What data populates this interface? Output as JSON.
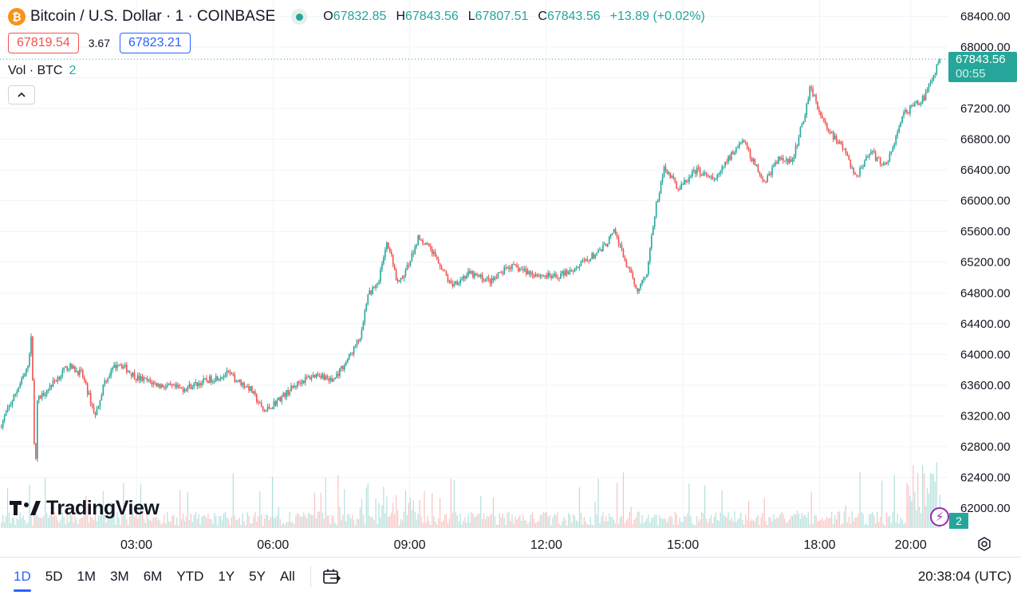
{
  "header": {
    "symbol_title": "Bitcoin / U.S. Dollar · 1 · COINBASE",
    "coin_glyph": "₿",
    "ohlc": {
      "o_label": "O",
      "o_value": "67832.85",
      "h_label": "H",
      "h_value": "67843.56",
      "l_label": "L",
      "l_value": "67807.51",
      "c_label": "C",
      "c_value": "67843.56",
      "change": "+13.89 (+0.02%)"
    },
    "bid": "67819.54",
    "spread": "3.67",
    "ask": "67823.21",
    "volume_label": "Vol · BTC",
    "volume_value": "2"
  },
  "last_price": {
    "value": "67843.56",
    "countdown": "00:55"
  },
  "brand": "TradingView",
  "volume_badge": "2",
  "colors": {
    "up": "#26a69a",
    "down": "#ef5350",
    "grid": "#f0f3fa",
    "axis_text": "#131722",
    "accent": "#2962ff"
  },
  "icons": {
    "collapse": "chevron-up-icon",
    "bolt": "lightning-icon",
    "settings": "gear-icon",
    "goto_date": "calendar-arrow-icon"
  },
  "bottom_bar": {
    "ranges": [
      "1D",
      "5D",
      "1M",
      "3M",
      "6M",
      "YTD",
      "1Y",
      "5Y",
      "All"
    ],
    "active_range": "1D",
    "clock": "20:38:04 (UTC)"
  },
  "chart_data": {
    "type": "candlestick",
    "title": "Bitcoin / U.S. Dollar · 1 · COINBASE",
    "interval": "1 minute",
    "xlabel": "",
    "ylabel": "",
    "x_ticks": [
      "03:00",
      "06:00",
      "09:00",
      "12:00",
      "15:00",
      "18:00",
      "20:00"
    ],
    "x_tick_hours": [
      3,
      6,
      9,
      12,
      15,
      18,
      20
    ],
    "x_range_hours": [
      0,
      20.64
    ],
    "y_ticks": [
      62000,
      62400,
      62800,
      63200,
      63600,
      64000,
      64400,
      64800,
      65200,
      65600,
      66000,
      66400,
      66800,
      67200,
      67600,
      68000,
      68400
    ],
    "ylim": [
      61800,
      68550
    ],
    "grid": true,
    "last_close": 67843.56,
    "price_path": [
      [
        0.0,
        63050
      ],
      [
        0.35,
        63500
      ],
      [
        0.6,
        63800
      ],
      [
        0.7,
        64250
      ],
      [
        0.78,
        62300
      ],
      [
        0.82,
        63400
      ],
      [
        1.2,
        63650
      ],
      [
        1.5,
        63850
      ],
      [
        1.8,
        63750
      ],
      [
        2.1,
        63200
      ],
      [
        2.3,
        63650
      ],
      [
        2.6,
        63900
      ],
      [
        3.0,
        63700
      ],
      [
        3.5,
        63600
      ],
      [
        4.0,
        63550
      ],
      [
        4.5,
        63650
      ],
      [
        5.0,
        63750
      ],
      [
        5.5,
        63550
      ],
      [
        5.8,
        63250
      ],
      [
        6.2,
        63450
      ],
      [
        6.6,
        63650
      ],
      [
        7.0,
        63750
      ],
      [
        7.3,
        63650
      ],
      [
        7.6,
        63900
      ],
      [
        7.9,
        64200
      ],
      [
        8.1,
        64800
      ],
      [
        8.3,
        64900
      ],
      [
        8.5,
        65500
      ],
      [
        8.75,
        64900
      ],
      [
        9.0,
        65200
      ],
      [
        9.2,
        65550
      ],
      [
        9.6,
        65250
      ],
      [
        9.9,
        64900
      ],
      [
        10.3,
        65050
      ],
      [
        10.8,
        64950
      ],
      [
        11.2,
        65150
      ],
      [
        11.7,
        65050
      ],
      [
        12.2,
        65000
      ],
      [
        12.7,
        65150
      ],
      [
        13.2,
        65350
      ],
      [
        13.5,
        65600
      ],
      [
        13.8,
        65100
      ],
      [
        14.0,
        64850
      ],
      [
        14.2,
        65050
      ],
      [
        14.4,
        65900
      ],
      [
        14.6,
        66450
      ],
      [
        14.9,
        66150
      ],
      [
        15.3,
        66400
      ],
      [
        15.7,
        66250
      ],
      [
        16.0,
        66550
      ],
      [
        16.3,
        66800
      ],
      [
        16.6,
        66450
      ],
      [
        16.8,
        66250
      ],
      [
        17.1,
        66550
      ],
      [
        17.4,
        66500
      ],
      [
        17.7,
        67200
      ],
      [
        17.8,
        67500
      ],
      [
        18.0,
        67150
      ],
      [
        18.2,
        66900
      ],
      [
        18.5,
        66700
      ],
      [
        18.8,
        66300
      ],
      [
        19.1,
        66650
      ],
      [
        19.4,
        66450
      ],
      [
        19.6,
        66650
      ],
      [
        19.8,
        67100
      ],
      [
        20.1,
        67250
      ],
      [
        20.3,
        67350
      ],
      [
        20.45,
        67550
      ],
      [
        20.64,
        67843
      ]
    ],
    "volume_series": {
      "name": "Vol · BTC",
      "last": 2
    }
  }
}
